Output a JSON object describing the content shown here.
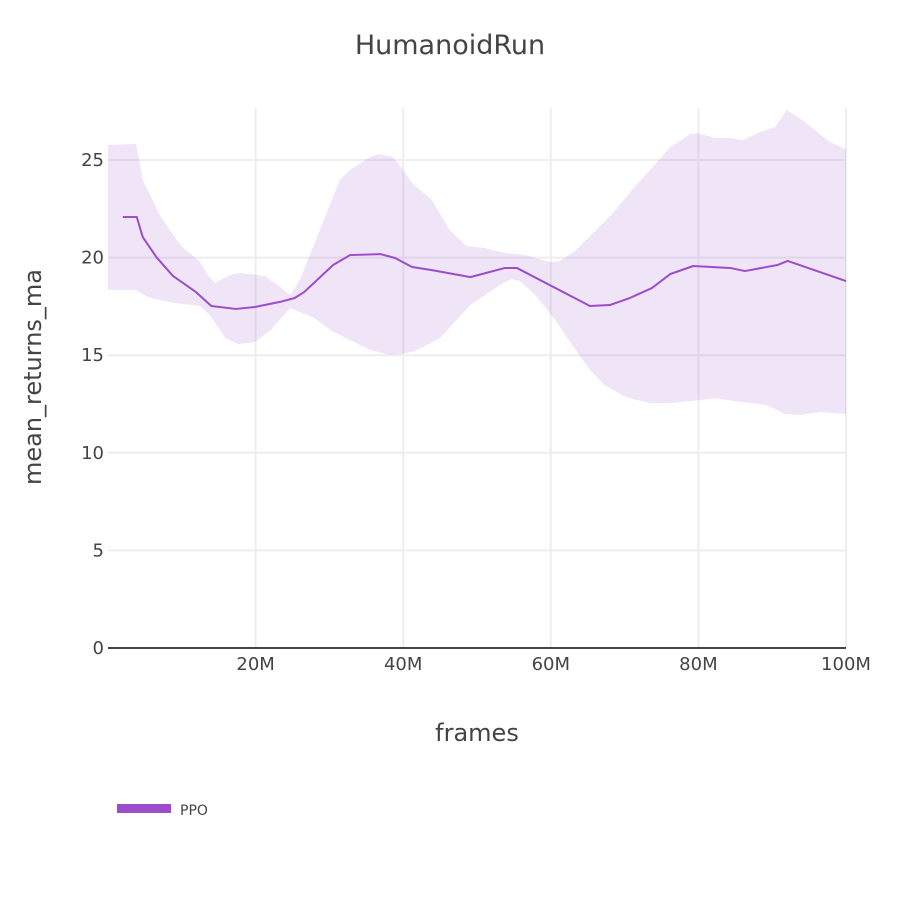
{
  "chart_data": {
    "type": "line",
    "title": "HumanoidRun",
    "xlabel": "frames",
    "ylabel": "mean_returns_ma",
    "xlim": [
      0,
      100000000
    ],
    "ylim": [
      0,
      27.5
    ],
    "x_ticks": [
      20000000,
      40000000,
      60000000,
      80000000,
      100000000
    ],
    "x_tick_labels": [
      "20M",
      "40M",
      "60M",
      "80M",
      "100M"
    ],
    "y_ticks": [
      0,
      5,
      10,
      15,
      20,
      25
    ],
    "y_tick_labels": [
      "0",
      "5",
      "10",
      "15",
      "20",
      "25"
    ],
    "grid": true,
    "legend_position": "bottom-left",
    "series": [
      {
        "name": "PPO",
        "color": "#9B4DCA",
        "band_color": "rgba(155,77,202,0.15)",
        "x_M": [
          2.0,
          3.9,
          4.7,
          6.6,
          8.8,
          11.9,
          14.0,
          17.3,
          19.9,
          23.3,
          25.3,
          26.6,
          30.5,
          32.8,
          36.9,
          38.9,
          41.2,
          43.9,
          49.1,
          53.8,
          55.4,
          65.3,
          68.0,
          70.7,
          73.7,
          76.2,
          79.3,
          84.3,
          86.3,
          90.7,
          92.1,
          100.0
        ],
        "values": [
          22.08,
          22.08,
          21.06,
          20.0,
          19.06,
          18.24,
          17.52,
          17.37,
          17.47,
          17.73,
          17.93,
          18.24,
          19.62,
          20.13,
          20.18,
          19.98,
          19.52,
          19.36,
          19.0,
          19.47,
          19.47,
          17.52,
          17.57,
          17.93,
          18.44,
          19.16,
          19.57,
          19.47,
          19.31,
          19.62,
          19.83,
          18.8
        ],
        "upper_x_M": [
          0,
          3.8,
          4.7,
          7.0,
          9.8,
          12.5,
          13.6,
          14.5,
          16.5,
          17.9,
          21.3,
          23.3,
          24.7,
          26.0,
          28.7,
          31.4,
          32.8,
          35.5,
          36.6,
          38.6,
          39.8,
          41.2,
          43.9,
          46.3,
          48.6,
          51.1,
          53.8,
          56.5,
          58.5,
          59.9,
          61.2,
          63.3,
          66.0,
          68.3,
          71.1,
          73.7,
          76.2,
          78.9,
          79.8,
          82.3,
          84.3,
          86.0,
          88.3,
          90.4,
          92.0,
          94.4,
          97.8,
          100.0
        ],
        "upper": [
          25.77,
          25.82,
          24.0,
          22.18,
          20.64,
          19.77,
          19.06,
          18.7,
          19.11,
          19.21,
          19.06,
          18.5,
          18.09,
          18.85,
          21.41,
          23.98,
          24.49,
          25.15,
          25.3,
          25.15,
          24.59,
          23.82,
          22.95,
          21.41,
          20.59,
          20.49,
          20.23,
          20.13,
          19.92,
          19.77,
          19.82,
          20.33,
          21.36,
          22.23,
          23.51,
          24.59,
          25.66,
          26.33,
          26.38,
          26.13,
          26.13,
          26.02,
          26.43,
          26.69,
          27.56,
          26.95,
          25.92,
          25.56
        ],
        "lower_x_M": [
          0,
          3.7,
          5.4,
          7.0,
          9.1,
          12.5,
          13.8,
          15.9,
          17.6,
          19.9,
          22.0,
          24.7,
          26.0,
          28.0,
          30.1,
          32.8,
          35.5,
          38.2,
          39.8,
          41.6,
          45.0,
          49.1,
          53.1,
          54.7,
          55.8,
          57.9,
          60.6,
          62.9,
          65.3,
          67.3,
          70.1,
          73.4,
          76.2,
          80.2,
          82.3,
          84.9,
          89.3,
          91.7,
          93.8,
          96.5,
          100.0
        ],
        "lower": [
          18.35,
          18.35,
          17.98,
          17.82,
          17.67,
          17.52,
          17.06,
          15.88,
          15.57,
          15.67,
          16.29,
          17.42,
          17.21,
          16.9,
          16.29,
          15.78,
          15.27,
          15.01,
          15.06,
          15.21,
          15.88,
          17.57,
          18.6,
          18.9,
          18.8,
          18.09,
          16.8,
          15.52,
          14.24,
          13.47,
          12.86,
          12.55,
          12.55,
          12.7,
          12.8,
          12.65,
          12.45,
          11.99,
          11.94,
          12.09,
          11.99
        ]
      }
    ]
  },
  "legend": {
    "items": [
      {
        "label": "PPO"
      }
    ]
  }
}
